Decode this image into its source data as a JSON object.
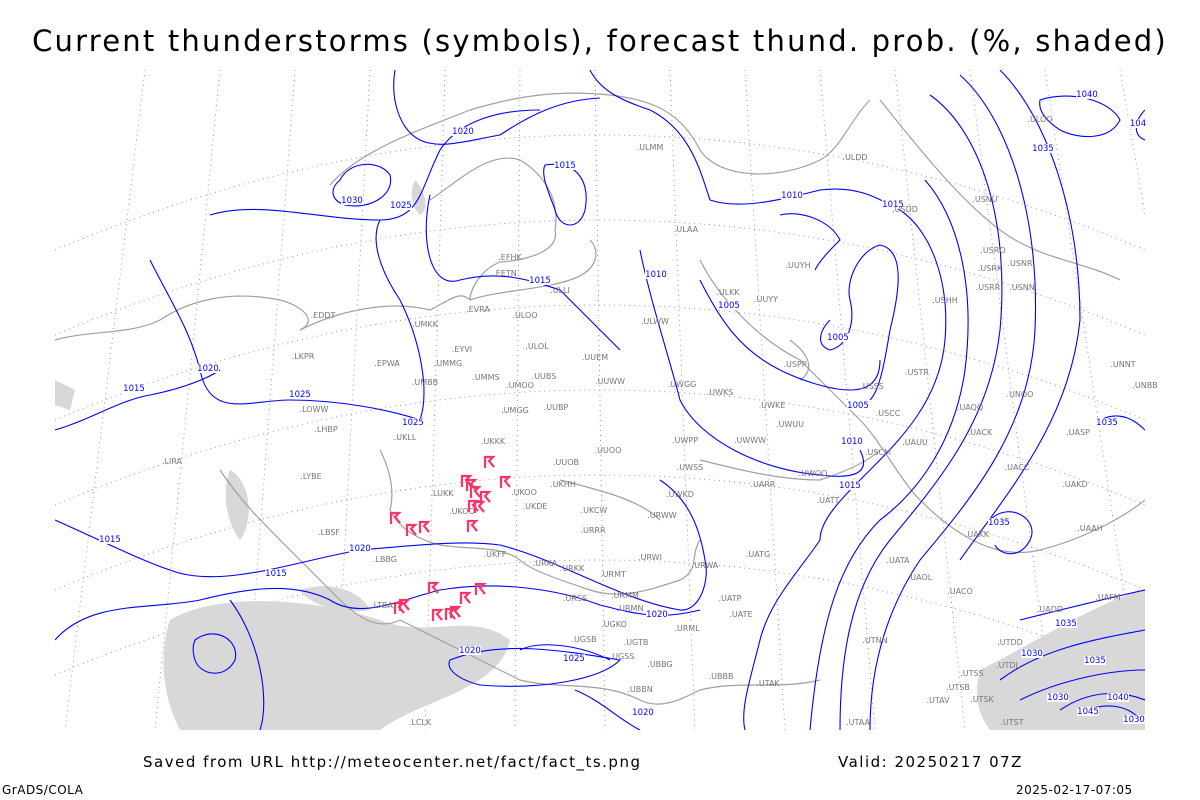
{
  "title": "Current thunderstorms (symbols), forecast thund. prob. (%, shaded)",
  "footer": {
    "saved_from": "Saved from URL http://meteocenter.net/fact/fact_ts.png",
    "valid": "Valid: 20250217 07Z",
    "credit": "GrADS/COLA",
    "timestamp": "2025-02-17-07:05"
  },
  "colors": {
    "isobar": "#0000ff",
    "coastline": "#a0a0a0",
    "thunderstorm_symbol": "#ff3366",
    "probability_shading": "#d8d8d8"
  },
  "isobar_labels": [
    "1020",
    "1030",
    "1025",
    "1015",
    "1010",
    "1015",
    "1015",
    "1010",
    "1005",
    "1005",
    "1005",
    "1010",
    "1015",
    "1020",
    "1015",
    "1025",
    "1025",
    "1020",
    "1015",
    "1015",
    "1020",
    "1020",
    "1025",
    "1020",
    "1035",
    "1040",
    "104",
    "1035",
    "1035",
    "1035",
    "1030",
    "1035",
    "1030",
    "1045",
    "1040",
    "1030"
  ],
  "stations": [
    "ULMM",
    "ULDD",
    "USDD",
    "USNU",
    "ULAA",
    "UUYH",
    "UUYY",
    "ULWW",
    "ULKK",
    "USRO",
    "USRK",
    "USNR",
    "USRR",
    "USNN",
    "USHH",
    "ULLI",
    "EFHK",
    "EETN",
    "EVRA",
    "ULOO",
    "EYVI",
    "UMMG",
    "UMMS",
    "UMOO",
    "ULOL",
    "UUBS",
    "UUEM",
    "UUWW",
    "EPWA",
    "EDDT",
    "UMKK",
    "UMBB",
    "LKPR",
    "LOWW",
    "LHBP",
    "UKLL",
    "UMGG",
    "UUBP",
    "UKKK",
    "UUOO",
    "UUOB",
    "UKHH",
    "UKOO",
    "UKDE",
    "LUKK",
    "UKOO",
    "UKCW",
    "URRR",
    "UKFF",
    "URKA",
    "URKK",
    "URWI",
    "URMT",
    "URMM",
    "URMN",
    "URSS",
    "UGSB",
    "UGKO",
    "UGTB",
    "UGSS",
    "UBBB",
    "UBBG",
    "UBBN",
    "URWA",
    "UATG",
    "UATE",
    "UATP",
    "URML",
    "UTAK",
    "UTAA",
    "UTNN",
    "UAOL",
    "UACC",
    "UAKK",
    "UAKD",
    "UASP",
    "UAAH",
    "UNBB",
    "UNNT",
    "UACK",
    "UAQQ",
    "UNOO",
    "USTR",
    "USSS",
    "USCC",
    "UWKE",
    "UWKS",
    "UWGG",
    "UWPP",
    "UWWW",
    "UWSS",
    "UWUU",
    "UWOO",
    "UWKD",
    "URWW",
    "UATT",
    "UARR",
    "USCM",
    "UAUU",
    "UATA",
    "UACO",
    "UTSS",
    "UTSB",
    "UTAV",
    "UTSK",
    "UTST",
    "UAFM",
    "UADD",
    "UTDD",
    "UTDL",
    "USPP",
    "LBBG",
    "LBSF",
    "LYBE",
    "LIRA",
    "LTBA",
    "LCLK",
    "ULOO"
  ]
}
